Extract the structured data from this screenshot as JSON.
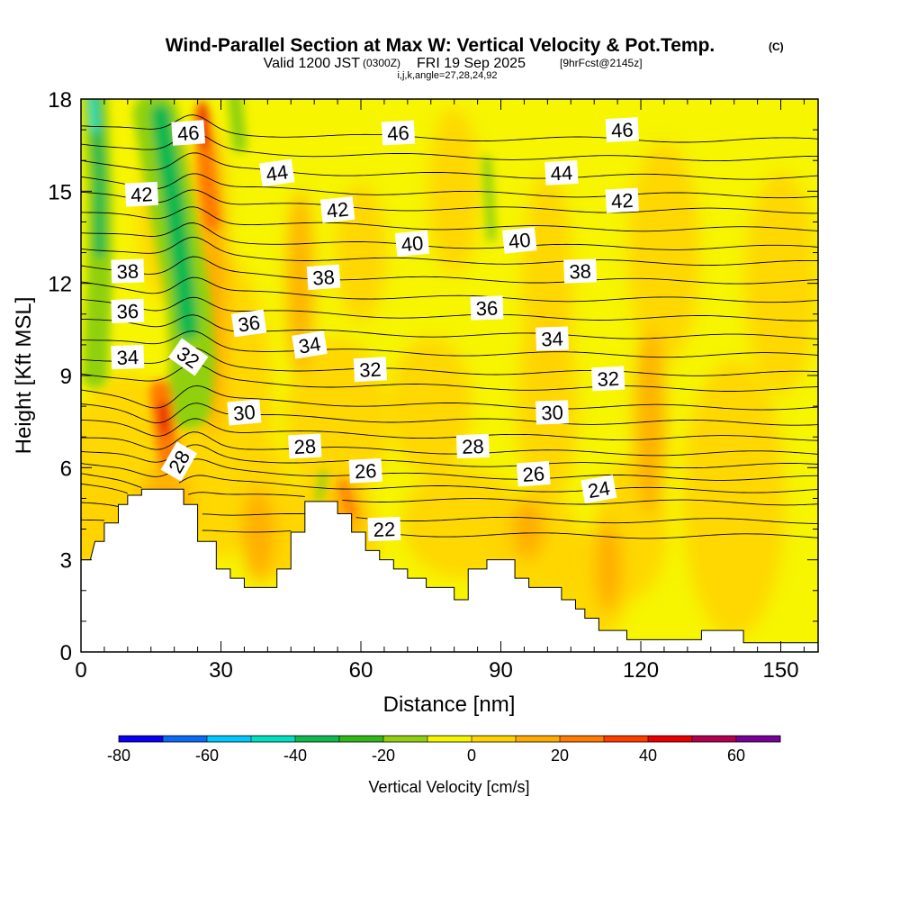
{
  "chart_data": {
    "type": "heatmap",
    "title": "Wind-Parallel Section at Max W: Vertical Velocity & Pot.Temp.",
    "copyright_mark": "(C)",
    "subtitle_valid": "Valid 1200 JST",
    "subtitle_utc": "(0300Z)",
    "subtitle_date": "FRI 19 Sep 2025",
    "subtitle_fcst": "[9hrFcst@2145z]",
    "subtitle_params": "i,j,k,angle=27,28,24,92",
    "xlabel": "Distance [nm]",
    "ylabel": "Height [Kft MSL]",
    "xlim": [
      0,
      158
    ],
    "ylim": [
      0,
      18
    ],
    "x_ticks": [
      0,
      30,
      60,
      90,
      120,
      150
    ],
    "y_ticks": [
      0,
      3,
      6,
      9,
      12,
      15,
      18
    ],
    "colorbar": {
      "title": "Vertical Velocity [cm/s]",
      "levels": [
        -80,
        -70,
        -60,
        -50,
        -40,
        -30,
        -20,
        -10,
        0,
        10,
        20,
        30,
        40,
        50,
        60,
        70
      ],
      "tick_labels": [
        -80,
        -60,
        -40,
        -20,
        0,
        20,
        40,
        60
      ],
      "colors": [
        "#0a00f0",
        "#0a6af5",
        "#00c8ff",
        "#00e0c0",
        "#10b850",
        "#30b818",
        "#90d010",
        "#f5f500",
        "#ffd200",
        "#ffaa00",
        "#ff7a00",
        "#ff3c00",
        "#e60000",
        "#b40050",
        "#780096"
      ]
    },
    "terrain_heights_kft": [
      [
        0,
        3.0
      ],
      [
        2,
        3.0
      ],
      [
        3,
        3.6
      ],
      [
        5,
        3.6
      ],
      [
        5,
        4.2
      ],
      [
        8,
        4.2
      ],
      [
        8,
        4.8
      ],
      [
        10,
        4.8
      ],
      [
        10,
        5.1
      ],
      [
        13,
        5.1
      ],
      [
        13,
        5.3
      ],
      [
        22,
        5.3
      ],
      [
        22,
        4.8
      ],
      [
        25,
        4.8
      ],
      [
        25,
        3.6
      ],
      [
        29,
        3.6
      ],
      [
        29,
        2.7
      ],
      [
        32,
        2.7
      ],
      [
        32,
        2.4
      ],
      [
        35,
        2.4
      ],
      [
        35,
        2.1
      ],
      [
        42,
        2.1
      ],
      [
        42,
        2.7
      ],
      [
        45,
        2.7
      ],
      [
        45,
        3.9
      ],
      [
        48,
        3.9
      ],
      [
        48,
        4.9
      ],
      [
        55,
        4.9
      ],
      [
        55,
        4.5
      ],
      [
        58,
        4.5
      ],
      [
        58,
        3.9
      ],
      [
        61,
        3.9
      ],
      [
        61,
        3.3
      ],
      [
        64,
        3.3
      ],
      [
        64,
        3.0
      ],
      [
        67,
        3.0
      ],
      [
        67,
        2.7
      ],
      [
        70,
        2.7
      ],
      [
        70,
        2.4
      ],
      [
        74,
        2.4
      ],
      [
        74,
        2.1
      ],
      [
        80,
        2.1
      ],
      [
        80,
        1.7
      ],
      [
        83,
        1.7
      ],
      [
        83,
        2.7
      ],
      [
        87,
        2.7
      ],
      [
        87,
        3.0
      ],
      [
        93,
        3.0
      ],
      [
        93,
        2.4
      ],
      [
        96,
        2.4
      ],
      [
        96,
        2.1
      ],
      [
        103,
        2.1
      ],
      [
        103,
        1.7
      ],
      [
        106,
        1.7
      ],
      [
        106,
        1.4
      ],
      [
        108,
        1.4
      ],
      [
        108,
        1.1
      ],
      [
        111,
        1.1
      ],
      [
        111,
        0.7
      ],
      [
        117,
        0.7
      ],
      [
        117,
        0.4
      ],
      [
        133,
        0.4
      ],
      [
        133,
        0.7
      ],
      [
        142,
        0.7
      ],
      [
        142,
        0.3
      ],
      [
        158,
        0.3
      ]
    ],
    "contour_labels": [
      {
        "value": "46",
        "x": 23,
        "y": 16.9,
        "angle": -4
      },
      {
        "value": "46",
        "x": 68,
        "y": 16.9,
        "angle": -3
      },
      {
        "value": "46",
        "x": 116,
        "y": 17.0,
        "angle": -3
      },
      {
        "value": "44",
        "x": 42,
        "y": 15.6,
        "angle": -8
      },
      {
        "value": "44",
        "x": 103,
        "y": 15.6,
        "angle": -3
      },
      {
        "value": "42",
        "x": 13,
        "y": 14.9,
        "angle": -3
      },
      {
        "value": "42",
        "x": 55,
        "y": 14.4,
        "angle": -6
      },
      {
        "value": "42",
        "x": 116,
        "y": 14.7,
        "angle": -3
      },
      {
        "value": "40",
        "x": 71,
        "y": 13.3,
        "angle": -5
      },
      {
        "value": "40",
        "x": 94,
        "y": 13.4,
        "angle": -6
      },
      {
        "value": "38",
        "x": 10,
        "y": 12.4,
        "angle": -2
      },
      {
        "value": "38",
        "x": 52,
        "y": 12.2,
        "angle": -4
      },
      {
        "value": "38",
        "x": 107,
        "y": 12.4,
        "angle": -2
      },
      {
        "value": "36",
        "x": 10,
        "y": 11.1,
        "angle": -2
      },
      {
        "value": "36",
        "x": 36,
        "y": 10.7,
        "angle": -8
      },
      {
        "value": "36",
        "x": 87,
        "y": 11.2,
        "angle": -2
      },
      {
        "value": "34",
        "x": 10,
        "y": 9.6,
        "angle": -2
      },
      {
        "value": "34",
        "x": 49,
        "y": 10.0,
        "angle": -9
      },
      {
        "value": "34",
        "x": 101,
        "y": 10.2,
        "angle": -2
      },
      {
        "value": "32",
        "x": 23,
        "y": 9.6,
        "angle": 35
      },
      {
        "value": "32",
        "x": 62,
        "y": 9.2,
        "angle": -3
      },
      {
        "value": "32",
        "x": 113,
        "y": 8.9,
        "angle": -3
      },
      {
        "value": "30",
        "x": 35,
        "y": 7.8,
        "angle": -5
      },
      {
        "value": "30",
        "x": 101,
        "y": 7.8,
        "angle": -2
      },
      {
        "value": "28",
        "x": 21,
        "y": 6.2,
        "angle": -60
      },
      {
        "value": "28",
        "x": 48,
        "y": 6.7,
        "angle": -3
      },
      {
        "value": "28",
        "x": 84,
        "y": 6.7,
        "angle": -2
      },
      {
        "value": "26",
        "x": 61,
        "y": 5.9,
        "angle": -3
      },
      {
        "value": "26",
        "x": 97,
        "y": 5.8,
        "angle": -4
      },
      {
        "value": "24",
        "x": 111,
        "y": 5.3,
        "angle": -10
      },
      {
        "value": "22",
        "x": 65,
        "y": 4.0,
        "angle": -2
      }
    ],
    "theta_levels": [
      22,
      23,
      24,
      25,
      26,
      27,
      28,
      29,
      30,
      31,
      32,
      33,
      34,
      35,
      36,
      37,
      38,
      39,
      40,
      41,
      42,
      43,
      44,
      45,
      46
    ],
    "theta_base_heights_kft": [
      3.9,
      4.4,
      5.0,
      5.4,
      5.8,
      6.2,
      6.6,
      7.1,
      7.6,
      8.1,
      8.7,
      9.2,
      9.8,
      10.4,
      11.0,
      11.6,
      12.2,
      12.8,
      13.3,
      13.9,
      14.5,
      15.0,
      15.6,
      16.2,
      16.8
    ],
    "velocity_features": [
      {
        "kind": "updraft",
        "x": 18,
        "y": 7.3,
        "peak_cm_s": 45
      },
      {
        "kind": "updraft",
        "x": 26.5,
        "y": 17.0,
        "peak_cm_s": 45
      },
      {
        "kind": "downdraft",
        "x": 22,
        "y": 12,
        "peak_cm_s": -40
      },
      {
        "kind": "downdraft",
        "x": 4,
        "y": 15,
        "peak_cm_s": -50
      }
    ]
  }
}
